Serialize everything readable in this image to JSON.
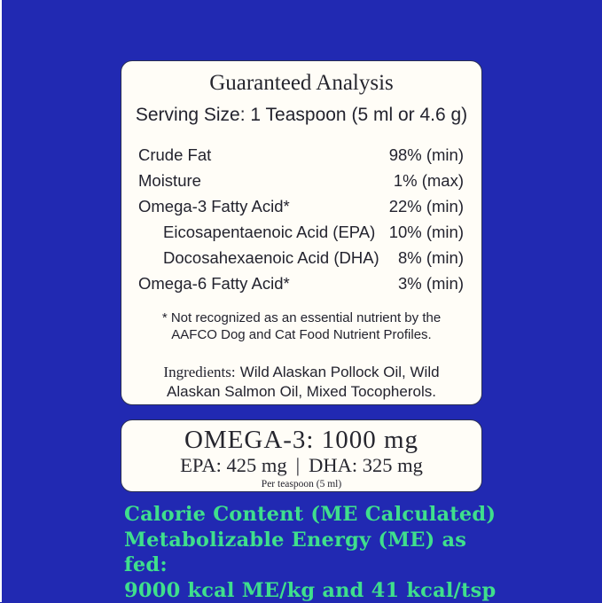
{
  "colors": {
    "page-bg": "#2129b2",
    "card-bg": "#fffdf7",
    "card-border": "#2a2f55",
    "text-dark": "#23232e",
    "accent-green": "#3fdf8c",
    "edge-strip": "#ffffff"
  },
  "analysis_card": {
    "title": "Guaranteed Analysis",
    "serving_size": "Serving Size: 1 Teaspoon (5 ml or 4.6 g)",
    "rows": [
      {
        "label": "Crude Fat",
        "value": "98% (min)"
      },
      {
        "label": "Moisture",
        "value": "1% (max)"
      },
      {
        "label": "Omega-3 Fatty Acid*",
        "value": "22% (min)"
      },
      {
        "label": "Eicosapentaenoic Acid (EPA)",
        "value": "10% (min)"
      },
      {
        "label": "Docosahexaenoic Acid (DHA)",
        "value": "8% (min)"
      },
      {
        "label": "Omega-6 Fatty Acid*",
        "value": "3% (min)"
      }
    ],
    "footnote": {
      "line1": "* Not recognized as an essential nutrient by the",
      "line2": "AAFCO Dog and Cat Food Nutrient Profiles."
    },
    "ingredients": {
      "label": "Ingredients:",
      "text": "Wild Alaskan Pollock Oil, Wild Alaskan Salmon Oil, Mixed Tocopherols."
    }
  },
  "omega_card": {
    "headline": "OMEGA-3: 1000 mg",
    "epa": "EPA: 425 mg",
    "separator": "|",
    "dha": "DHA: 325 mg",
    "per_serving": "Per teaspoon (5 ml)"
  },
  "calorie_content": {
    "line1": "Calorie Content (ME Calculated)",
    "line2": "Metabolizable Energy (ME) as fed:",
    "line3": "9000 kcal ME/kg and 41 kcal/tsp"
  }
}
